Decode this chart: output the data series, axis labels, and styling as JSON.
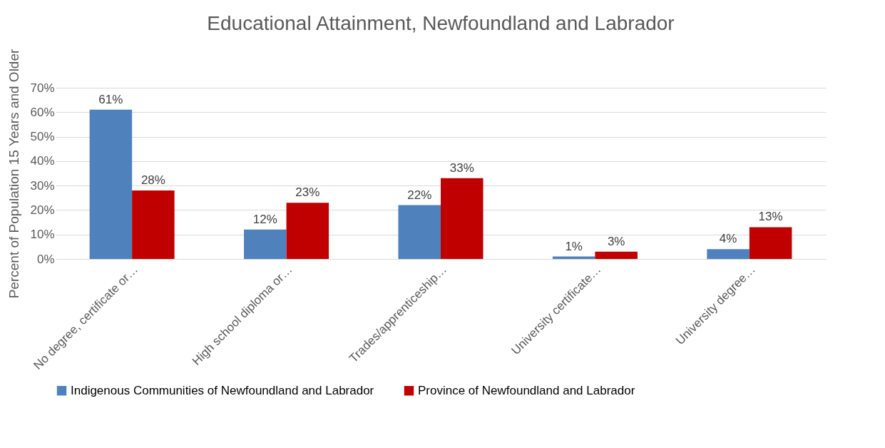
{
  "chart_data": {
    "type": "bar",
    "title": "Educational Attainment, Newfoundland and Labrador",
    "ylabel": "Percent of Population 15 Years and Older",
    "categories": [
      "No degree, certificate or…",
      "High school diploma or…",
      "Trades/apprenticeship…",
      "University certificate…",
      "University degree…"
    ],
    "series": [
      {
        "name": "Indigenous Communities of Newfoundland and Labrador",
        "color": "#4f81bd",
        "values": [
          61,
          12,
          22,
          1,
          4
        ],
        "value_labels": [
          "61%",
          "12%",
          "22%",
          "1%",
          "4%"
        ]
      },
      {
        "name": "Province of Newfoundland and Labrador",
        "color": "#c00000",
        "values": [
          28,
          23,
          33,
          3,
          13
        ],
        "value_labels": [
          "28%",
          "23%",
          "33%",
          "3%",
          "13%"
        ]
      }
    ],
    "ylim": [
      0,
      70
    ],
    "yticks": [
      {
        "value": 0,
        "label": "0%"
      },
      {
        "value": 10,
        "label": "10%"
      },
      {
        "value": 20,
        "label": "20%"
      },
      {
        "value": 30,
        "label": "30%"
      },
      {
        "value": 40,
        "label": "40%"
      },
      {
        "value": 50,
        "label": "50%"
      },
      {
        "value": 60,
        "label": "60%"
      },
      {
        "value": 70,
        "label": "70%"
      }
    ],
    "grid": "y",
    "legend": "bottom"
  }
}
